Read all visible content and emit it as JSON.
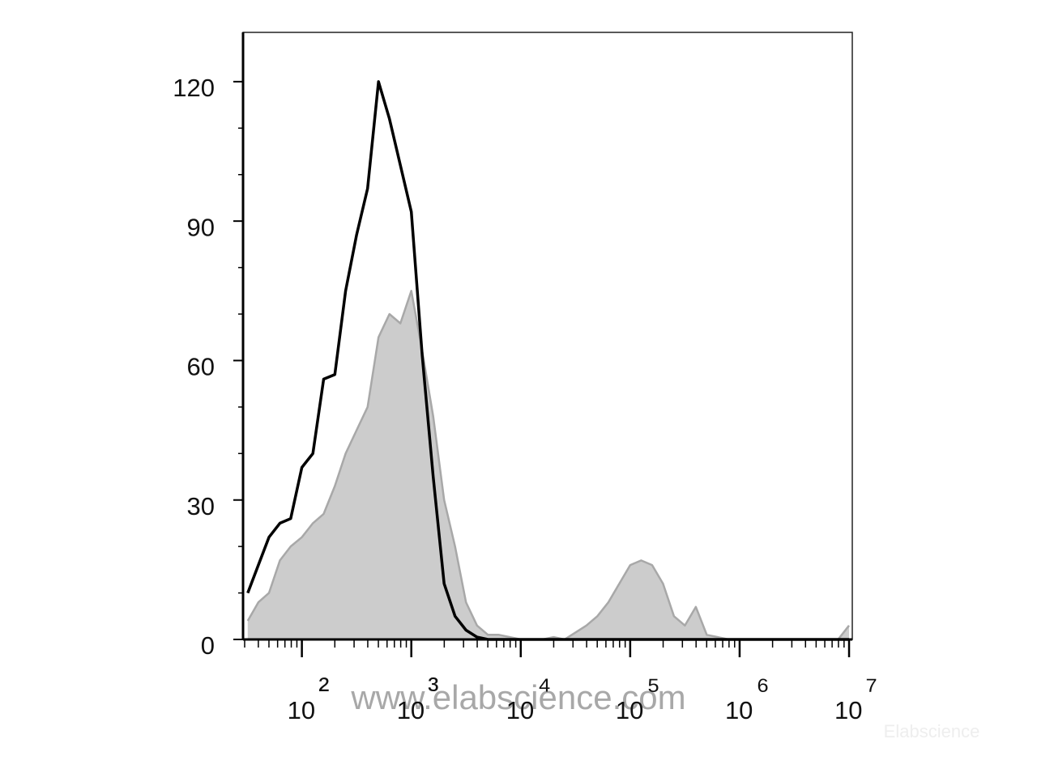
{
  "chart_data": {
    "type": "area-line",
    "log_x": true,
    "x": [
      32,
      40,
      50,
      63,
      79,
      100,
      126,
      158,
      200,
      251,
      316,
      398,
      501,
      631,
      794,
      1000,
      1259,
      1585,
      1995,
      2512,
      3162,
      3981,
      5012,
      6310,
      7943,
      10000,
      12589,
      15849,
      19953,
      25119,
      31623,
      39811,
      50119,
      63096,
      79433,
      100000,
      125893,
      158489,
      199526,
      251189,
      316228,
      398107,
      501187,
      630957,
      794328,
      1000000,
      1258925,
      1584893,
      1995262,
      2511886,
      3162278,
      3981072,
      5011872,
      6309573,
      7943282,
      10000000
    ],
    "series": [
      {
        "color": "#a8a8a8",
        "fill": "#cccccc",
        "values": [
          4,
          8,
          10,
          17,
          20,
          22,
          25,
          27,
          33,
          40,
          45,
          50,
          65,
          70,
          68,
          75,
          62,
          48,
          30,
          20,
          8,
          3,
          1,
          1,
          0.5,
          0,
          0,
          0,
          0.5,
          0,
          1.5,
          3,
          5,
          8,
          12,
          16,
          17,
          16,
          12,
          5,
          3,
          7,
          1,
          0.5,
          0,
          0,
          0,
          0,
          0,
          0,
          0,
          0,
          0,
          0,
          0,
          3
        ]
      },
      {
        "color": "#000000",
        "values": [
          10,
          16,
          22,
          25,
          26,
          37,
          40,
          56,
          57,
          75,
          87,
          97,
          120,
          112,
          102,
          92,
          61,
          35,
          12,
          5,
          2,
          0.5,
          0,
          0,
          0,
          0,
          0,
          0,
          0,
          0,
          0,
          0,
          0,
          0,
          0,
          0,
          0,
          0,
          0,
          0,
          0,
          0,
          0,
          0,
          0,
          0,
          0,
          0,
          0,
          0,
          0,
          0,
          0,
          0,
          0,
          0
        ]
      }
    ],
    "xlim": [
      29,
      10700000
    ],
    "xticks": [
      {
        "value": 100,
        "label": "10²"
      },
      {
        "value": 1000,
        "label": "10³"
      },
      {
        "value": 10000,
        "label": "10⁴"
      },
      {
        "value": 100000,
        "label": "10⁵"
      },
      {
        "value": 1000000,
        "label": "10⁶"
      },
      {
        "value": 10000000,
        "label": "10⁷"
      }
    ],
    "xminorticks": [
      30,
      40,
      50,
      60,
      70,
      80,
      90,
      200,
      300,
      400,
      500,
      600,
      700,
      800,
      900,
      2000,
      3000,
      4000,
      5000,
      6000,
      7000,
      8000,
      9000,
      20000,
      30000,
      40000,
      50000,
      60000,
      70000,
      80000,
      90000,
      200000,
      300000,
      400000,
      500000,
      600000,
      700000,
      800000,
      900000,
      2000000,
      3000000,
      4000000,
      5000000,
      6000000,
      7000000,
      8000000,
      9000000
    ],
    "ylim": [
      0,
      130.6
    ],
    "yticks": [
      0,
      30,
      60,
      90,
      120
    ],
    "yminorticks": [
      10,
      20,
      40,
      50,
      70,
      80,
      100,
      110
    ],
    "watermarks": [
      "www.elabscience.com",
      "Elabscience"
    ]
  }
}
